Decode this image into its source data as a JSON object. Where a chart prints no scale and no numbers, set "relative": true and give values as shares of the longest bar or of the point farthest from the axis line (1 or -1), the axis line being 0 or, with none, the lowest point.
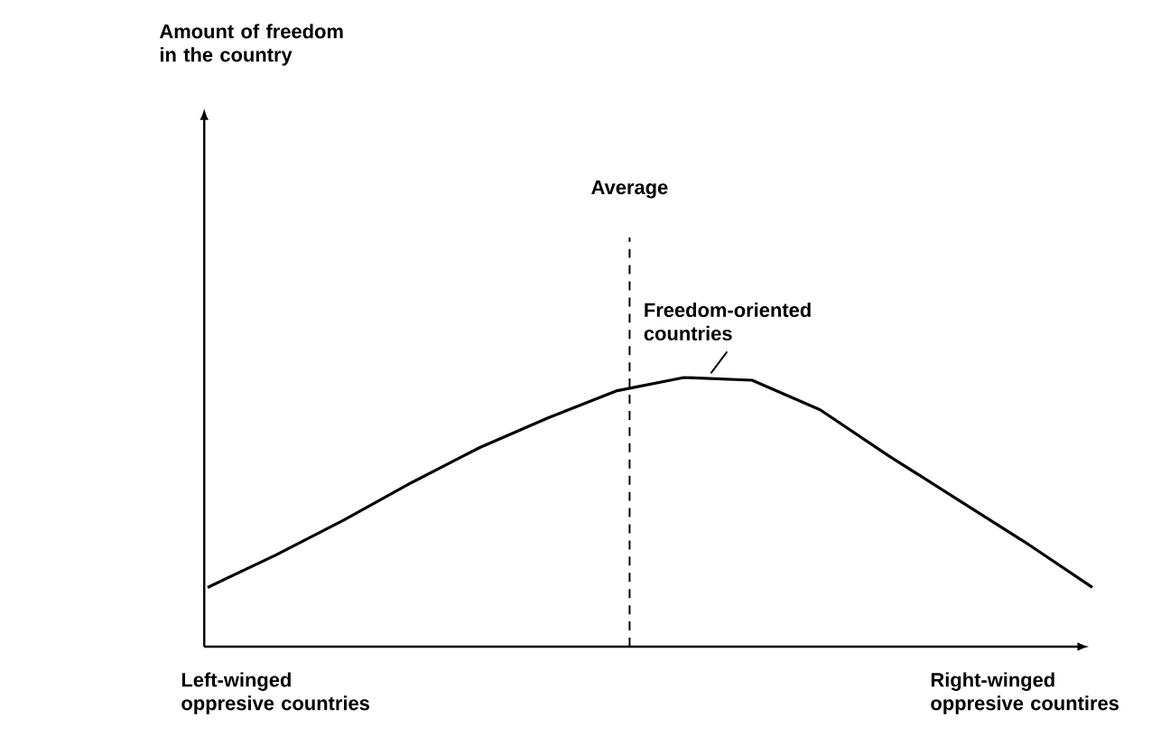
{
  "chart_data": {
    "type": "line",
    "relative": true,
    "categories": [
      null,
      null,
      null,
      null,
      null,
      null,
      null,
      null,
      null,
      null,
      null,
      null,
      null,
      null
    ],
    "values": [
      0.22,
      0.34,
      0.47,
      0.61,
      0.74,
      0.85,
      0.95,
      1,
      0.99,
      0.88,
      0.71,
      0.55,
      0.39,
      0.22
    ],
    "color": "#000000",
    "tick_labels": false,
    "annotations": [
      "Freedom-oriented countries",
      "Left-winged oppresive countries",
      "Right-winged oppresive countires",
      "Amount of freedom in the country",
      "Average"
    ]
  }
}
